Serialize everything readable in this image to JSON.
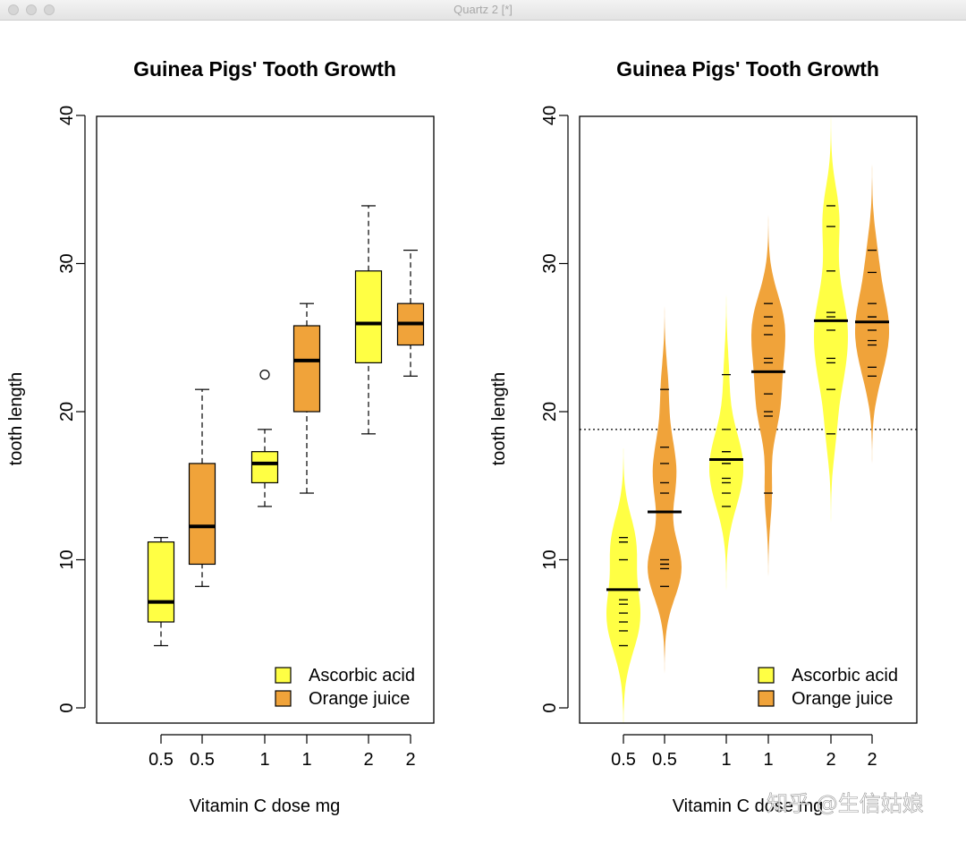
{
  "window": {
    "title": "Quartz 2 [*]"
  },
  "colors": {
    "ascorbic": "#FFFF44",
    "orange": "#F0A33A",
    "dashed_line": "#000000"
  },
  "watermark": "知乎 @生信姑娘",
  "chart_data": [
    {
      "type": "boxplot",
      "title": "Guinea Pigs' Tooth Growth",
      "xlabel": "Vitamin C dose mg",
      "ylabel": "tooth length",
      "ylim": [
        0,
        40
      ],
      "yticks": [
        0,
        10,
        20,
        30,
        40
      ],
      "categories": [
        "0.5",
        "0.5",
        "1",
        "1",
        "2",
        "2"
      ],
      "legend": {
        "position": "bottom-right",
        "entries": [
          "Ascorbic acid",
          "Orange juice"
        ]
      },
      "groups": [
        {
          "label": "0.5",
          "supp": "Ascorbic acid",
          "whisker_low": 4.2,
          "q1": 5.8,
          "median": 7.15,
          "q3": 11.2,
          "whisker_high": 11.5,
          "outliers": []
        },
        {
          "label": "0.5",
          "supp": "Orange juice",
          "whisker_low": 8.2,
          "q1": 9.7,
          "median": 12.25,
          "q3": 16.5,
          "whisker_high": 21.5,
          "outliers": []
        },
        {
          "label": "1",
          "supp": "Ascorbic acid",
          "whisker_low": 13.6,
          "q1": 15.2,
          "median": 16.5,
          "q3": 17.3,
          "whisker_high": 18.8,
          "outliers": [
            22.5
          ]
        },
        {
          "label": "1",
          "supp": "Orange juice",
          "whisker_low": 14.5,
          "q1": 20.0,
          "median": 23.45,
          "q3": 25.8,
          "whisker_high": 27.3,
          "outliers": []
        },
        {
          "label": "2",
          "supp": "Ascorbic acid",
          "whisker_low": 18.5,
          "q1": 23.3,
          "median": 25.95,
          "q3": 29.5,
          "whisker_high": 33.9,
          "outliers": []
        },
        {
          "label": "2",
          "supp": "Orange juice",
          "whisker_low": 22.4,
          "q1": 24.5,
          "median": 25.95,
          "q3": 27.3,
          "whisker_high": 30.9,
          "outliers": []
        }
      ]
    },
    {
      "type": "beanplot",
      "title": "Guinea Pigs' Tooth Growth",
      "xlabel": "Vitamin C dose mg",
      "ylabel": "tooth length",
      "ylim": [
        0,
        40
      ],
      "yticks": [
        0,
        10,
        20,
        30,
        40
      ],
      "categories": [
        "0.5",
        "0.5",
        "1",
        "1",
        "2",
        "2"
      ],
      "overall_mean_line": 18.8,
      "legend": {
        "position": "bottom-right",
        "entries": [
          "Ascorbic acid",
          "Orange juice"
        ]
      },
      "groups": [
        {
          "label": "0.5",
          "supp": "Ascorbic acid",
          "mean": 7.98,
          "density_range": [
            -1,
            17.5
          ],
          "points": [
            4.2,
            11.5,
            7.3,
            5.8,
            6.4,
            10.0,
            11.2,
            11.2,
            5.2,
            7.0
          ]
        },
        {
          "label": "0.5",
          "supp": "Orange juice",
          "mean": 13.23,
          "density_range": [
            2.3,
            27.5
          ],
          "points": [
            15.2,
            21.5,
            17.6,
            9.7,
            14.5,
            10.0,
            8.2,
            9.4,
            16.5,
            9.7
          ]
        },
        {
          "label": "1",
          "supp": "Ascorbic acid",
          "mean": 16.77,
          "density_range": [
            7.6,
            28.5
          ],
          "points": [
            16.5,
            16.5,
            15.2,
            17.3,
            22.5,
            17.3,
            13.6,
            14.5,
            18.8,
            15.5
          ]
        },
        {
          "label": "1",
          "supp": "Orange juice",
          "mean": 22.7,
          "density_range": [
            8.5,
            33.3
          ],
          "points": [
            19.7,
            23.3,
            23.6,
            26.4,
            20.0,
            25.2,
            25.8,
            21.2,
            14.5,
            27.3
          ]
        },
        {
          "label": "2",
          "supp": "Ascorbic acid",
          "mean": 26.14,
          "density_range": [
            12.5,
            40
          ],
          "points": [
            23.6,
            18.5,
            33.9,
            25.5,
            26.4,
            32.5,
            26.7,
            21.5,
            23.3,
            29.5
          ]
        },
        {
          "label": "2",
          "supp": "Orange juice",
          "mean": 26.06,
          "density_range": [
            16.5,
            37
          ],
          "points": [
            25.5,
            26.4,
            22.4,
            24.5,
            24.8,
            30.9,
            26.4,
            27.3,
            29.4,
            23.0
          ]
        }
      ]
    }
  ]
}
